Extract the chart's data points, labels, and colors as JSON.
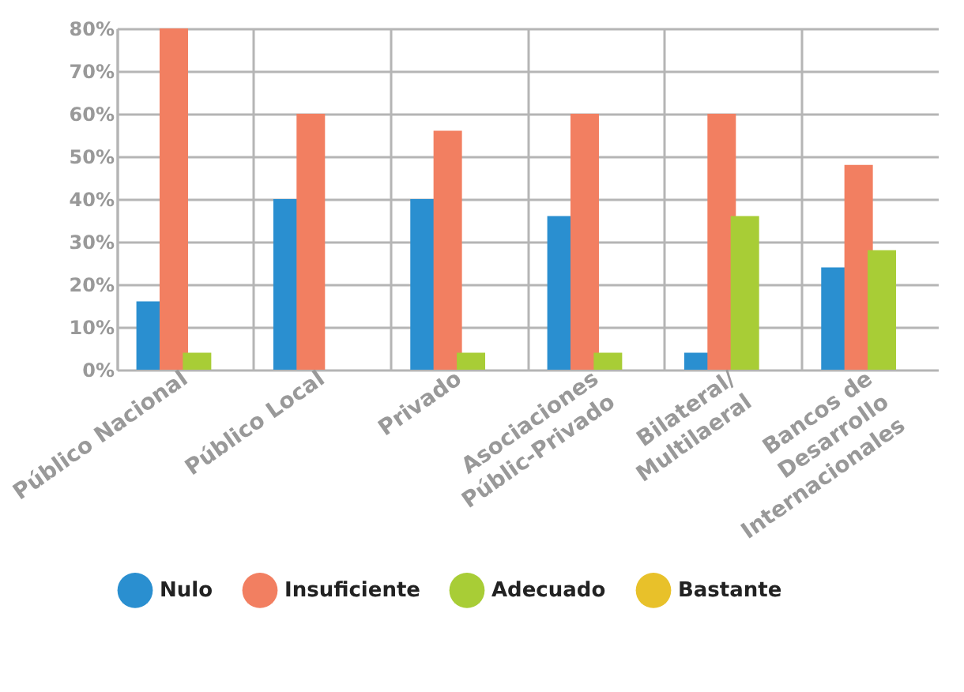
{
  "chart_data": {
    "type": "bar",
    "categories": [
      "Público Nacional",
      "Público Local",
      "Privado",
      "Asociaciones\nPúblic-Privado",
      "Bilateral/\nMultilaeral",
      "Bancos de\nDesarrollo\nInternacionales"
    ],
    "series": [
      {
        "name": "Nulo",
        "color": "#2a8fd0",
        "values": [
          16,
          40,
          40,
          36,
          4,
          24
        ]
      },
      {
        "name": "Insuficiente",
        "color": "#f27f61",
        "values": [
          80,
          60,
          56,
          60,
          60,
          48
        ]
      },
      {
        "name": "Adecuado",
        "color": "#a8cd36",
        "values": [
          4,
          0,
          4,
          4,
          36,
          28
        ]
      },
      {
        "name": "Bastante",
        "color": "#e8c12a",
        "values": [
          0,
          0,
          0,
          0,
          0,
          0
        ]
      }
    ],
    "ylim": [
      0,
      80
    ],
    "yticks": [
      {
        "value": 0,
        "label": "0%"
      },
      {
        "value": 10,
        "label": "10%"
      },
      {
        "value": 20,
        "label": "20%"
      },
      {
        "value": 30,
        "label": "30%"
      },
      {
        "value": 40,
        "label": "40%"
      },
      {
        "value": 50,
        "label": "50%"
      },
      {
        "value": 60,
        "label": "60%"
      },
      {
        "value": 70,
        "label": "70%"
      },
      {
        "value": 80,
        "label": "80%"
      }
    ],
    "grid": true,
    "legend": "bottom"
  }
}
